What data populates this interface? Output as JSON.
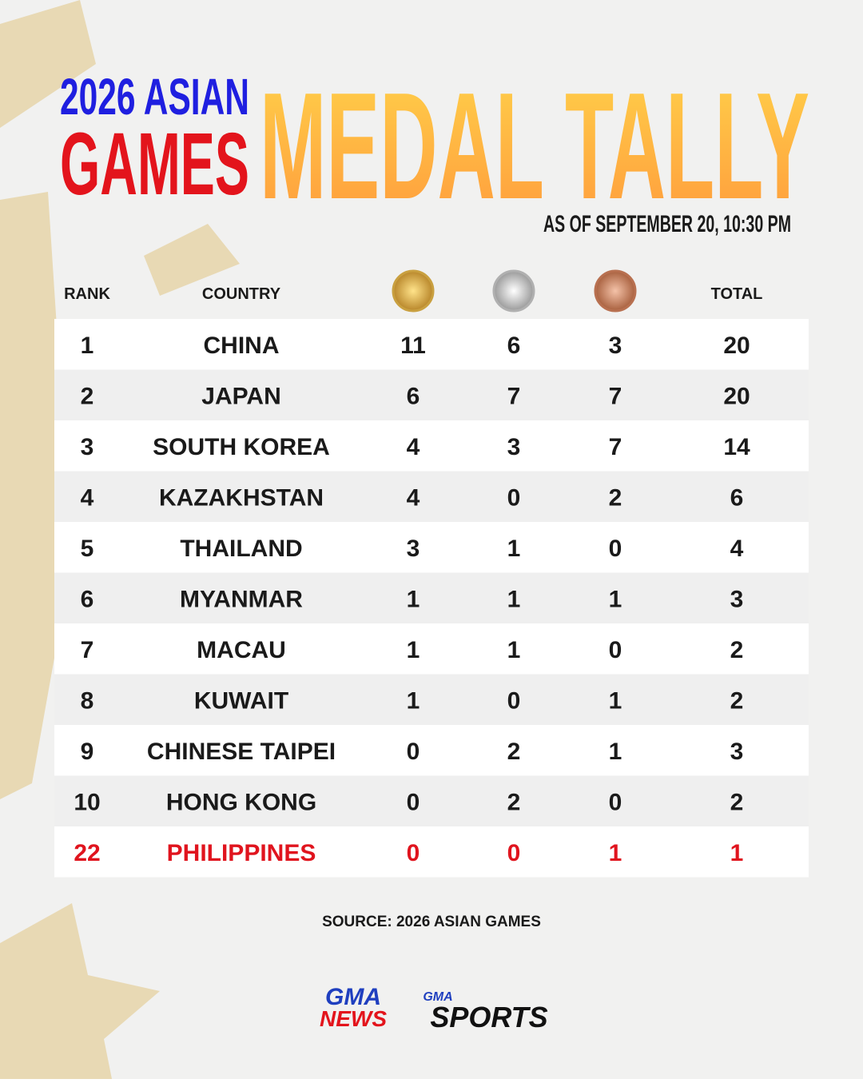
{
  "header": {
    "title_line1": "2026 ASIAN",
    "title_line2": "GAMES",
    "title_main": "MEDAL TALLY",
    "subtitle": "AS OF SEPTEMBER 20, 10:30 PM"
  },
  "table": {
    "columns": {
      "rank": "RANK",
      "country": "COUNTRY",
      "total": "TOTAL"
    },
    "rows": [
      [
        1,
        "CHINA",
        11,
        6,
        3,
        20
      ],
      [
        2,
        "JAPAN",
        6,
        7,
        7,
        20
      ],
      [
        3,
        "SOUTH KOREA",
        4,
        3,
        7,
        14
      ],
      [
        4,
        "KAZAKHSTAN",
        4,
        0,
        2,
        6
      ],
      [
        5,
        "THAILAND",
        3,
        1,
        0,
        4
      ],
      [
        6,
        "MYANMAR",
        1,
        1,
        1,
        3
      ],
      [
        7,
        "MACAU",
        1,
        1,
        0,
        2
      ],
      [
        8,
        "KUWAIT",
        1,
        0,
        1,
        2
      ],
      [
        9,
        "CHINESE TAIPEI",
        0,
        2,
        1,
        3
      ],
      [
        10,
        "HONG KONG",
        0,
        2,
        0,
        2
      ],
      [
        22,
        "PHILIPPINES",
        0,
        0,
        1,
        1
      ]
    ]
  },
  "footer": {
    "source": "SOURCE: 2026 ASIAN GAMES",
    "logo1_top": "GMA",
    "logo1_bottom": "NEWS",
    "logo2_top": "GMA",
    "logo2_bottom": "SPORTS"
  }
}
